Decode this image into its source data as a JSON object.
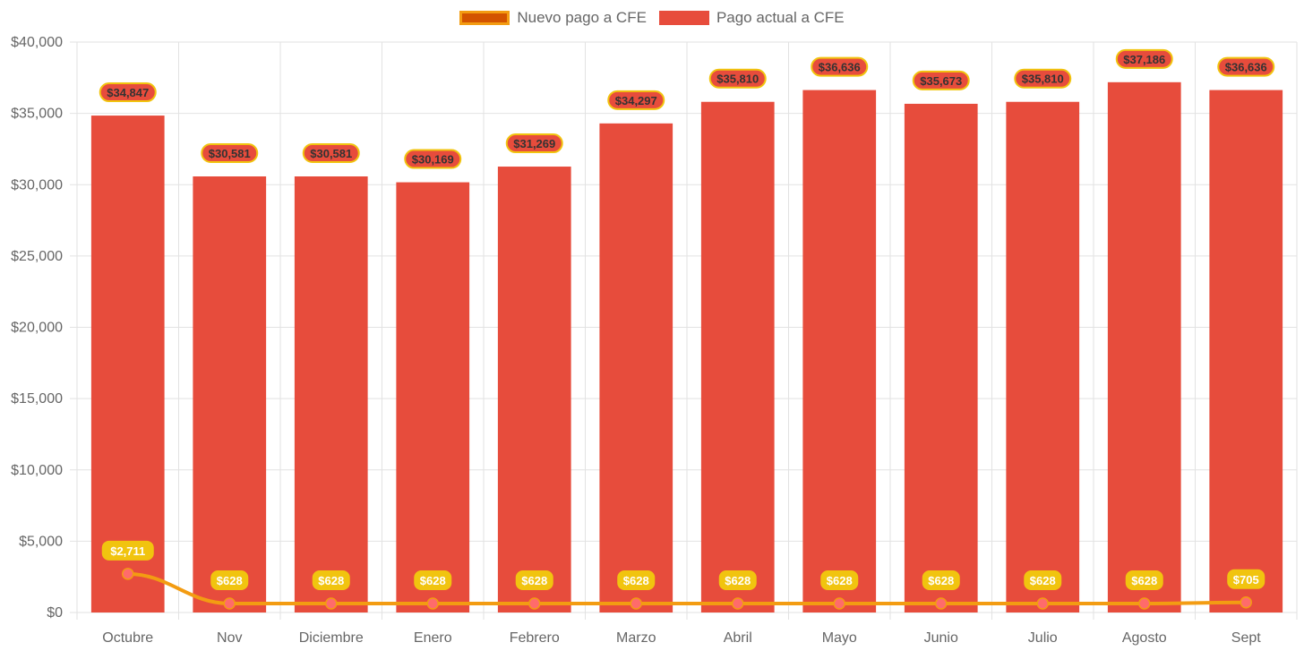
{
  "chart_data": {
    "type": "bar",
    "title": "",
    "xlabel": "",
    "ylabel": "",
    "ylim": [
      0,
      40000
    ],
    "y_ticks": [
      0,
      5000,
      10000,
      15000,
      20000,
      25000,
      30000,
      35000,
      40000
    ],
    "y_tick_labels": [
      "$0",
      "$5,000",
      "$10,000",
      "$15,000",
      "$20,000",
      "$25,000",
      "$30,000",
      "$35,000",
      "$40,000"
    ],
    "grid": true,
    "legend_position": "top-center",
    "categories": [
      "Octubre",
      "Nov",
      "Diciembre",
      "Enero",
      "Febrero",
      "Marzo",
      "Abril",
      "Mayo",
      "Junio",
      "Julio",
      "Agosto",
      "Sept"
    ],
    "series": [
      {
        "name": "Nuevo pago a CFE",
        "type": "line",
        "color": "#f39c12",
        "legend_fill": "#d35400",
        "point_color": "#ff6b6b",
        "label_bg": "#f1c40f",
        "values": [
          2711,
          628,
          628,
          628,
          628,
          628,
          628,
          628,
          628,
          628,
          628,
          705
        ],
        "labels": [
          "$2,711",
          "$628",
          "$628",
          "$628",
          "$628",
          "$628",
          "$628",
          "$628",
          "$628",
          "$628",
          "$628",
          "$705"
        ]
      },
      {
        "name": "Pago actual a CFE",
        "type": "bar",
        "color": "#e74c3c",
        "label_border": "#f1c40f",
        "values": [
          34847,
          30581,
          30581,
          30169,
          31269,
          34297,
          35810,
          36636,
          35673,
          35810,
          37186,
          36636
        ],
        "labels": [
          "$34,847",
          "$30,581",
          "$30,581",
          "$30,169",
          "$31,269",
          "$34,297",
          "$35,810",
          "$36,636",
          "$35,673",
          "$35,810",
          "$37,186",
          "$36,636"
        ]
      }
    ]
  }
}
